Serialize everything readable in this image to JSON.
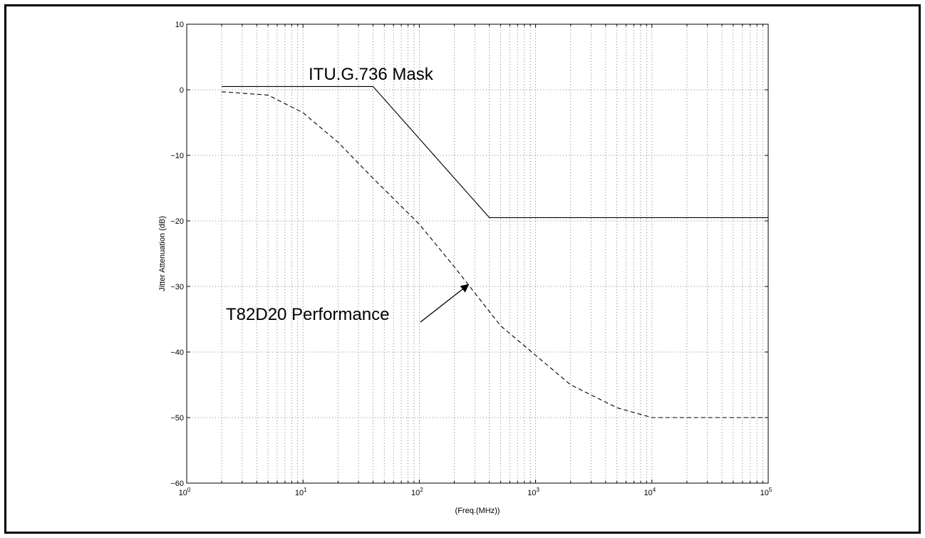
{
  "chart_data": {
    "type": "line",
    "title": "",
    "xlabel": "(Freq.(MHz))",
    "ylabel": "Jitter Attenuation (dB)",
    "x_scale": "log",
    "xlim": [
      1,
      100000
    ],
    "ylim": [
      -60,
      10
    ],
    "grid": true,
    "x_tick_labels": [
      {
        "base": "10",
        "exp": "0"
      },
      {
        "base": "10",
        "exp": "1"
      },
      {
        "base": "10",
        "exp": "2"
      },
      {
        "base": "10",
        "exp": "3"
      },
      {
        "base": "10",
        "exp": "4"
      },
      {
        "base": "10",
        "exp": "5"
      }
    ],
    "y_ticks": [
      10,
      0,
      -10,
      -20,
      -30,
      -40,
      -50,
      -60
    ],
    "y_tick_labels": [
      "10",
      "0",
      "−10",
      "−20",
      "−30",
      "−40",
      "−50",
      "−60"
    ],
    "series": [
      {
        "style": "solid",
        "x": [
          2,
          40,
          400,
          100000
        ],
        "y": [
          0.5,
          0.5,
          -19.5,
          -19.5
        ]
      },
      {
        "style": "dashed",
        "x": [
          2,
          5,
          10,
          20,
          40,
          100,
          200,
          300,
          500,
          1000,
          2000,
          5000,
          10000,
          100000
        ],
        "y": [
          -0.3,
          -0.8,
          -3.5,
          -8,
          -13.5,
          -20.5,
          -27,
          -31,
          -36,
          -40.5,
          -45,
          -48.5,
          -50,
          -50
        ]
      }
    ],
    "annotations": [
      {
        "id": "mask",
        "text": "ITU.G.736 Mask"
      },
      {
        "id": "perf",
        "text": "T82D20 Performance",
        "arrow_to": {
          "x": 250,
          "y": -29.5
        }
      }
    ]
  }
}
